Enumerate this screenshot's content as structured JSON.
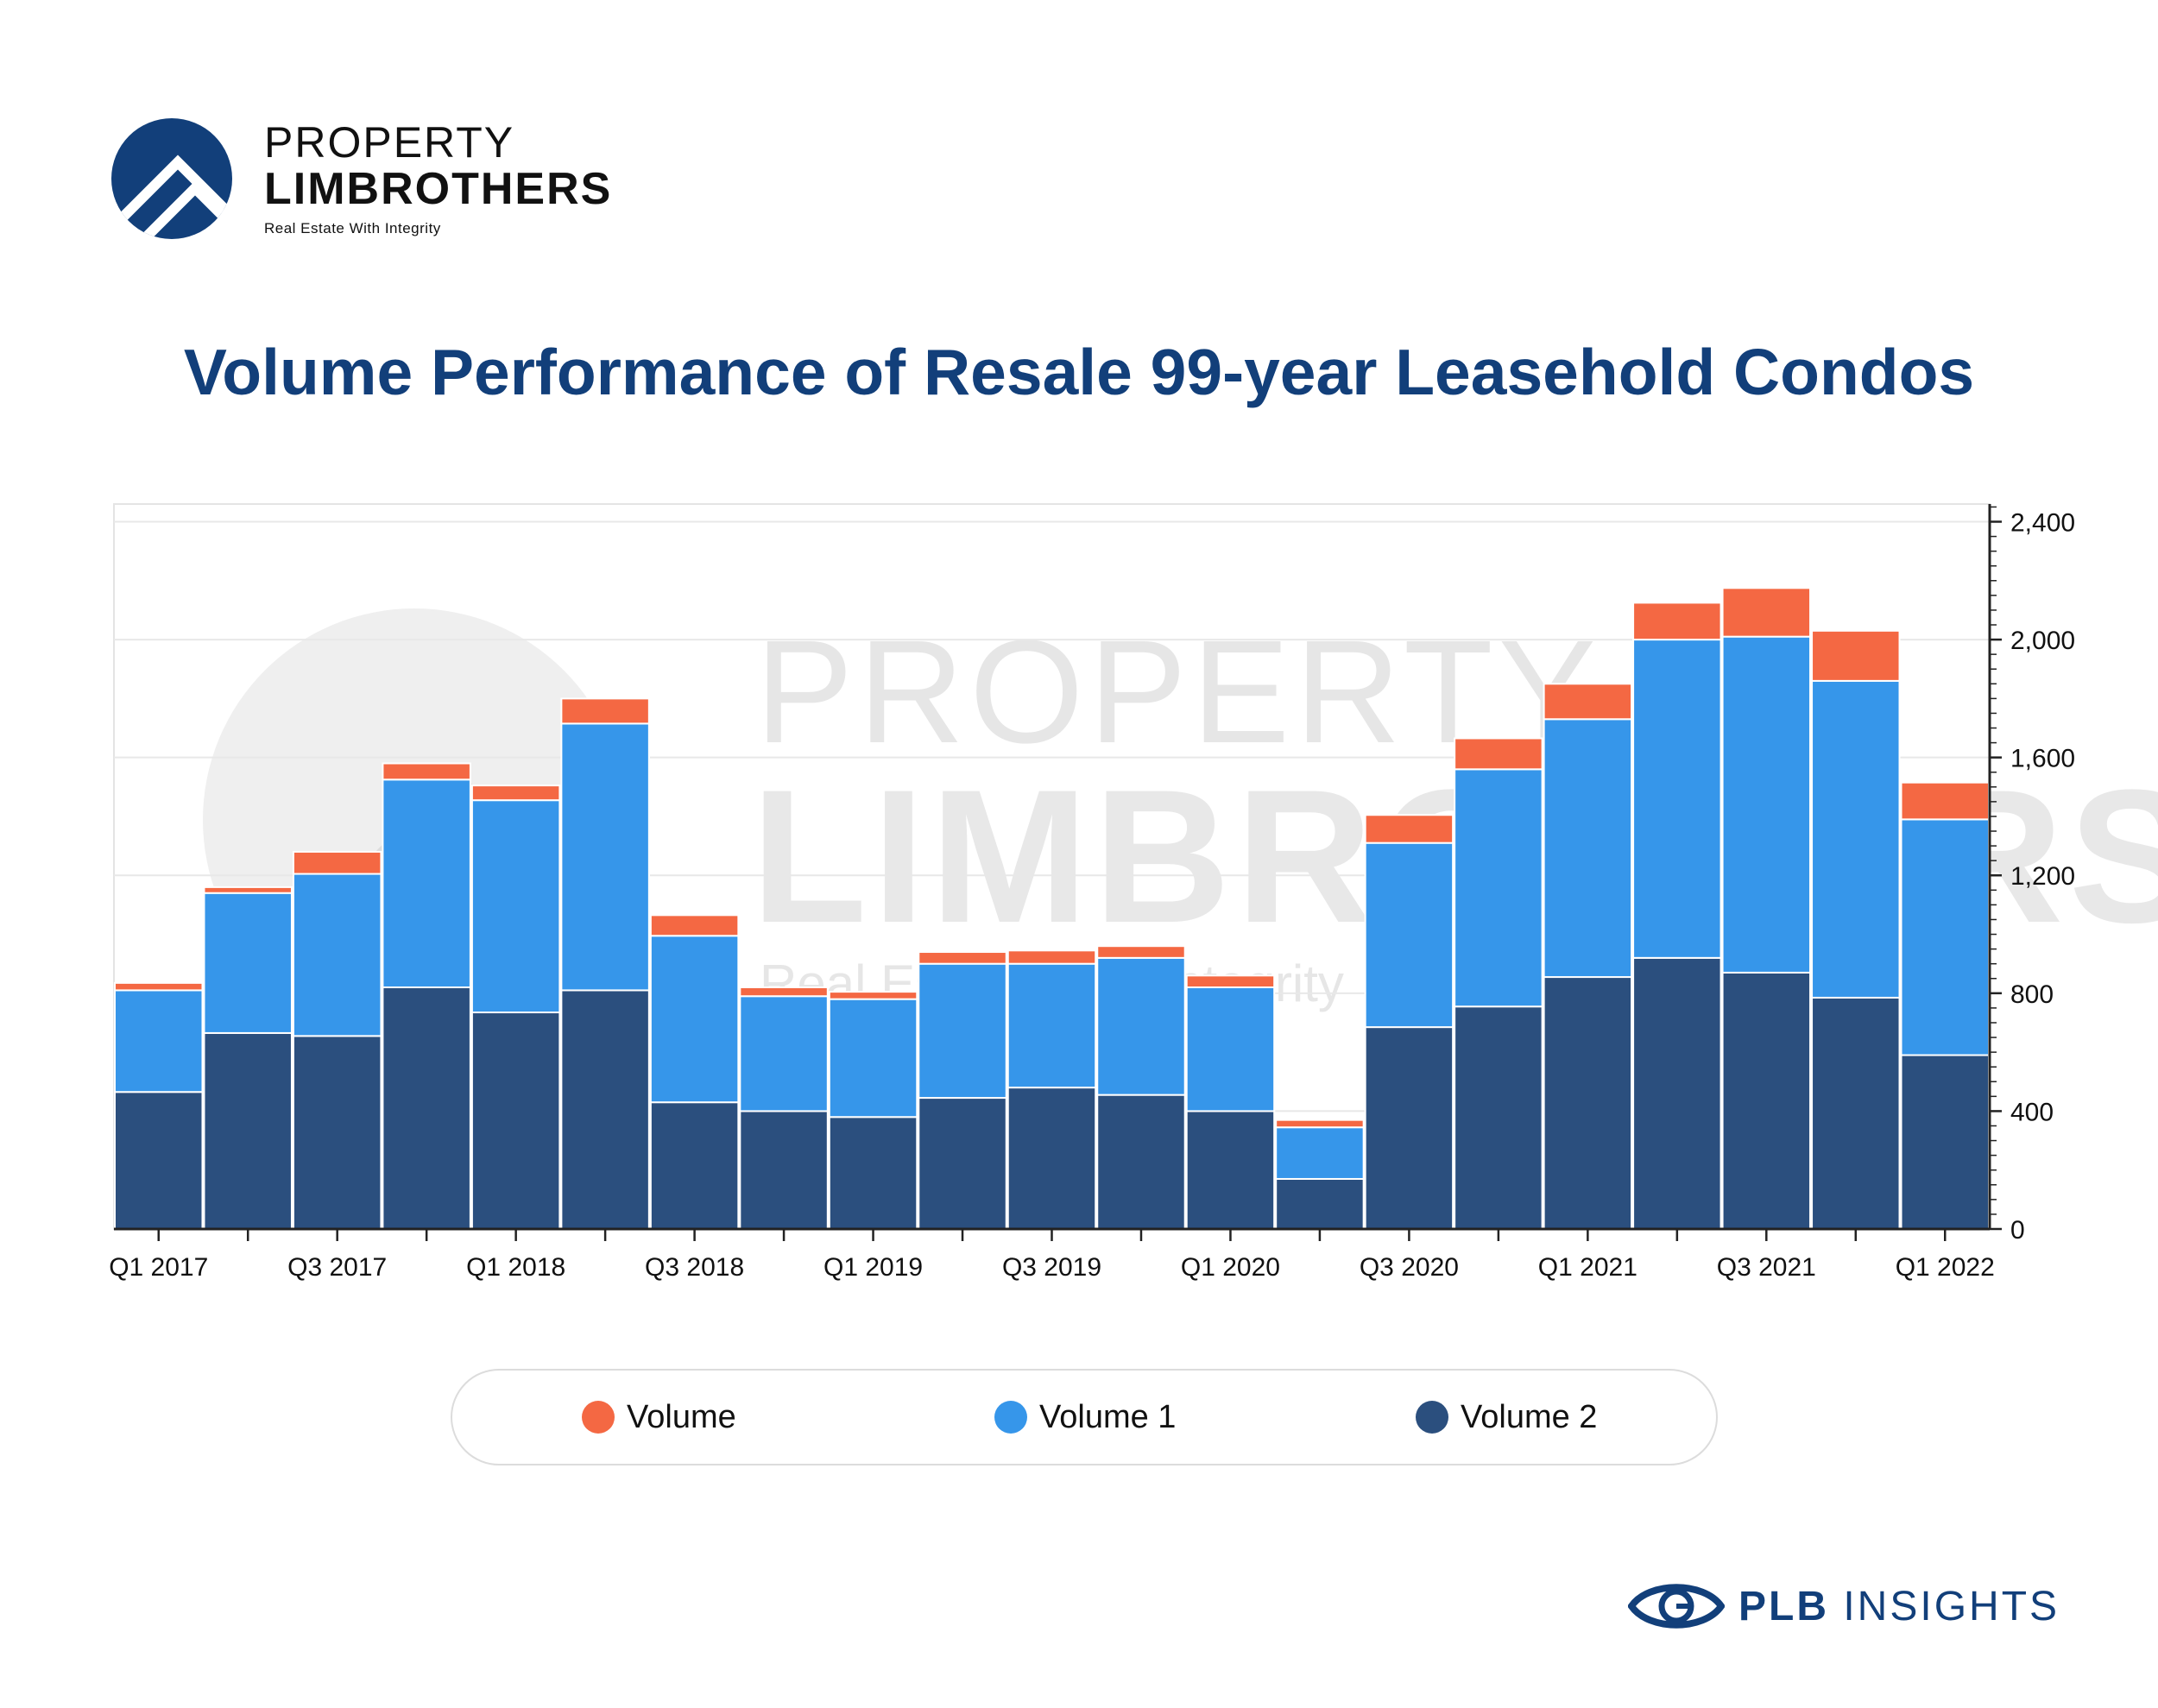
{
  "brand": {
    "name_line1": "PROPERTY",
    "name_line2": "LIMBROTHERS",
    "tagline": "Real Estate With Integrity",
    "logo_icon": "house-roof-circle-icon",
    "primary_color": "#123f7a"
  },
  "page": {
    "title": "Volume Performance of Resale 99-year Leasehold Condos"
  },
  "watermark": {
    "line1": "PROPERTY",
    "line2": "LIMBROTHERS",
    "line3": "Real Estate With Integrity"
  },
  "chart_data": {
    "type": "bar",
    "stacked": true,
    "title": "Volume Performance of Resale 99-year Leasehold Condos",
    "xlabel": "",
    "ylabel": "",
    "y_axis_side": "right",
    "ylim": [
      0,
      2460
    ],
    "yticks": [
      0,
      400,
      800,
      1200,
      1600,
      2000,
      2400
    ],
    "ytick_labels": [
      "0",
      "400",
      "800",
      "1,200",
      "1,600",
      "2,000",
      "2,400"
    ],
    "grid": true,
    "legend_position": "bottom",
    "categories": [
      "Q1 2017",
      "Q2 2017",
      "Q3 2017",
      "Q4 2017",
      "Q1 2018",
      "Q2 2018",
      "Q3 2018",
      "Q4 2018",
      "Q1 2019",
      "Q2 2019",
      "Q3 2019",
      "Q4 2019",
      "Q1 2020",
      "Q2 2020",
      "Q3 2020",
      "Q4 2020",
      "Q1 2021",
      "Q2 2021",
      "Q3 2021",
      "Q4 2021",
      "Q1 2022"
    ],
    "x_tick_labels": [
      "Q1 2017",
      "",
      "Q3 2017",
      "",
      "Q1 2018",
      "",
      "Q3 2018",
      "",
      "Q1 2019",
      "",
      "Q3 2019",
      "",
      "Q1 2020",
      "",
      "Q3 2020",
      "",
      "Q1 2021",
      "",
      "Q3 2021",
      "",
      "Q1 2022"
    ],
    "series": [
      {
        "name": "Volume 2",
        "color": "#2b4f7e",
        "values": [
          465,
          665,
          655,
          820,
          735,
          810,
          430,
          400,
          380,
          445,
          480,
          455,
          400,
          170,
          685,
          755,
          855,
          920,
          870,
          785,
          590
        ]
      },
      {
        "name": "Volume 1",
        "color": "#3696ea",
        "values": [
          345,
          475,
          550,
          705,
          720,
          905,
          565,
          390,
          400,
          455,
          420,
          465,
          420,
          175,
          625,
          805,
          875,
          1080,
          1140,
          1075,
          800
        ]
      },
      {
        "name": "Volume",
        "color": "#f46843",
        "values": [
          25,
          20,
          75,
          55,
          50,
          85,
          70,
          30,
          25,
          40,
          45,
          40,
          40,
          25,
          95,
          105,
          120,
          125,
          165,
          170,
          125
        ]
      }
    ]
  },
  "legend": {
    "items": [
      {
        "label": "Volume",
        "color": "#f46843"
      },
      {
        "label": "Volume 1",
        "color": "#3696ea"
      },
      {
        "label": "Volume 2",
        "color": "#2b4f7e"
      }
    ]
  },
  "footer": {
    "brand_bold": "PLB",
    "brand_rest": " INSIGHTS",
    "icon": "eye-icon"
  }
}
